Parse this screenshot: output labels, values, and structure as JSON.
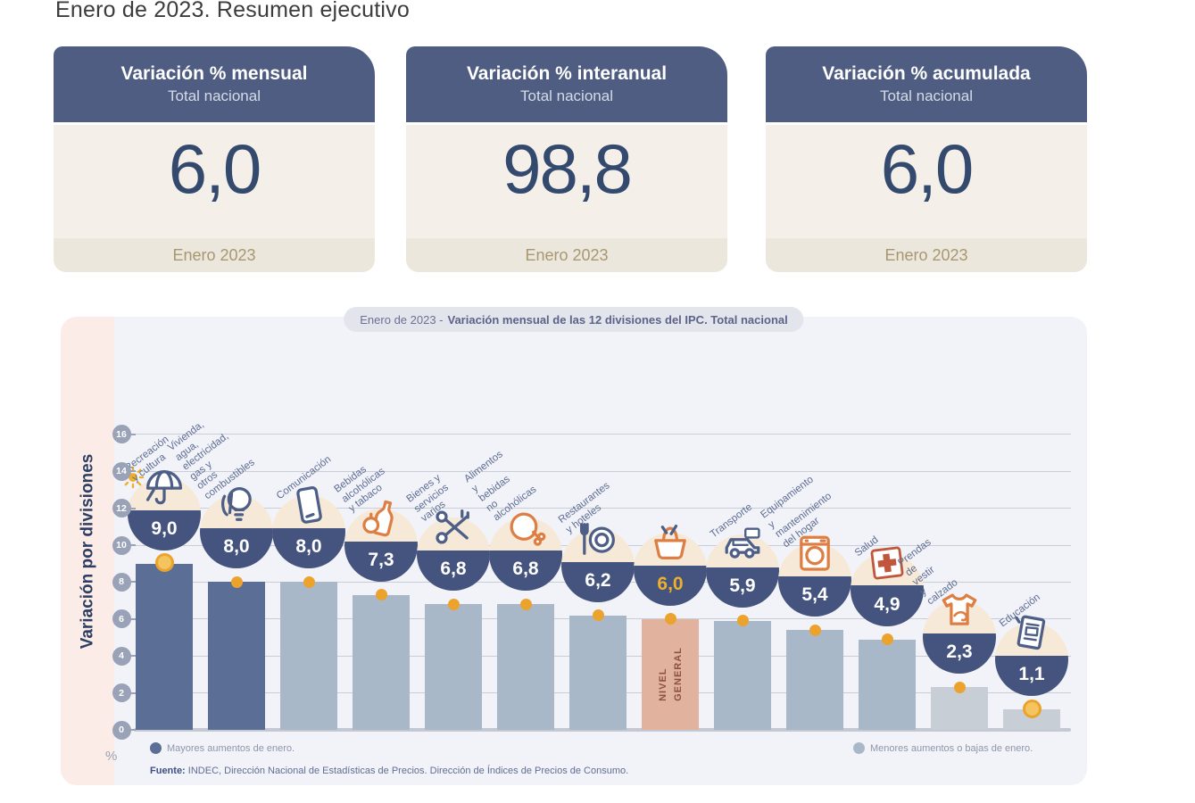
{
  "title": "Enero de 2023. Resumen ejecutivo",
  "cards": [
    {
      "title": "Variación % mensual",
      "subtitle": "Total nacional",
      "value": "6,0",
      "period": "Enero 2023"
    },
    {
      "title": "Variación % interanual",
      "subtitle": "Total nacional",
      "value": "98,8",
      "period": "Enero 2023"
    },
    {
      "title": "Variación % acumulada",
      "subtitle": "Total nacional",
      "value": "6,0",
      "period": "Enero 2023"
    }
  ],
  "chart": {
    "header_prefix": "Enero de 2023 -",
    "header_bold": "Variación mensual de las 12 divisiones del IPC. Total nacional",
    "y_axis_title": "Variación por divisiones",
    "unit_label": "%",
    "legend": [
      {
        "swatch": "dark",
        "label": "Mayores aumentos de enero."
      },
      {
        "swatch": "light",
        "label": "Menores aumentos o bajas de enero."
      }
    ],
    "source_bold": "Fuente:",
    "source_rest": " INDEC, Dirección Nacional de Estadísticas de Precios. Dirección de Índices de Precios de Consumo."
  },
  "chart_data": {
    "type": "bar",
    "title": "Enero de 2023 - Variación mensual de las 12 divisiones del IPC. Total nacional",
    "xlabel": "",
    "ylabel": "Variación por divisiones",
    "ylim": [
      0,
      16
    ],
    "yticks": [
      0,
      2,
      4,
      6,
      8,
      10,
      12,
      14,
      16
    ],
    "grid": true,
    "unit": "%",
    "categories": [
      "Recreación y cultura",
      "Vivienda, agua, electricidad, gas y otros combustibles",
      "Comunicación",
      "Bebidas alcohólicas y tabaco",
      "Bienes y servicios varios",
      "Alimentos y bebidas no alcohólicas",
      "Restaurantes y hoteles",
      "Nivel general",
      "Transporte",
      "Equipamiento y mantenimiento del hogar",
      "Salud",
      "Prendas de vestir y calzado",
      "Educación"
    ],
    "values": [
      9.0,
      8.0,
      8.0,
      7.3,
      6.8,
      6.8,
      6.2,
      6.0,
      5.9,
      5.4,
      4.9,
      2.3,
      1.1
    ],
    "value_labels": [
      "9,0",
      "8,0",
      "8,0",
      "7,3",
      "6,8",
      "6,8",
      "6,2",
      "6,0",
      "5,9",
      "5,4",
      "4,9",
      "2,3",
      "1,1"
    ],
    "bar_groups": [
      "dark",
      "dark",
      "light",
      "light",
      "light",
      "light",
      "light",
      "general",
      "light",
      "light",
      "light",
      "lighter",
      "lighter"
    ],
    "label_lines": [
      "Recreación\ny cultura",
      "Vivienda, agua,\nelectricidad, gas y\notros combustibles",
      "Comunicación",
      "Bebidas\nalcohólicas\ny tabaco",
      "Bienes y\nservicios varios",
      "Alimentos y\nbebidas\nno alcohólicas",
      "Restaurantes\ny hoteles",
      "",
      "Transporte",
      "Equipamiento\ny mantenimiento\ndel hogar",
      "Salud",
      "Prendas de vestir\ny calzado",
      "Educación"
    ],
    "icons": [
      "umbrella-icon",
      "lightbulb-icon",
      "smartphone-icon",
      "bottle-icon",
      "scissors-icon",
      "chicken-icon",
      "plate-fork-icon",
      "basket-icon",
      "car-icon",
      "washing-machine-icon",
      "medical-cross-icon",
      "tshirt-icon",
      "book-icon"
    ],
    "markers": [
      "coin",
      "dot",
      "dot",
      "dot",
      "dot",
      "dot",
      "dot",
      "dot",
      "dot",
      "dot",
      "dot",
      "dot",
      "coin"
    ],
    "general_bar_label": "NIVEL\nGENERAL",
    "highlight_value_index": 7,
    "legend_position": "bottom"
  },
  "colors": {
    "card_header": "#4e5d81",
    "card_body": "#f4f0e9",
    "card_footer": "#ece7dc",
    "value_text": "#33496e",
    "period_text": "#a89770",
    "pill_bg": "#e3e5ec",
    "pill_text": "#6c7094",
    "pill_bold": "#5d6288",
    "panel_bg": "#f2f3f8",
    "strip_pink": "#fcece7",
    "axis_title": "#2d3e63",
    "grid_line": "#c9cdd6",
    "base_line": "#c3c8d2",
    "tick_bg": "#99a2b6",
    "bar_dark": "#5b6e96",
    "bar_light": "#a9b8c8",
    "bar_lighter": "#c7ced6",
    "bar_general": "#e1b29e",
    "general_text": "#8a5340",
    "dot": "#eca32d",
    "bubble_navy": "#44547e",
    "bubble_cream": "#f6e9d7",
    "gold": "#eeb02c",
    "label_text": "#5d6c93",
    "legend_text": "#8d96ab",
    "source_text": "#5f6d96",
    "source_bold": "#3d4f86",
    "icon_navy": "#4d5e87",
    "icon_orange": "#dd7f45",
    "icon_red": "#c0563c"
  }
}
